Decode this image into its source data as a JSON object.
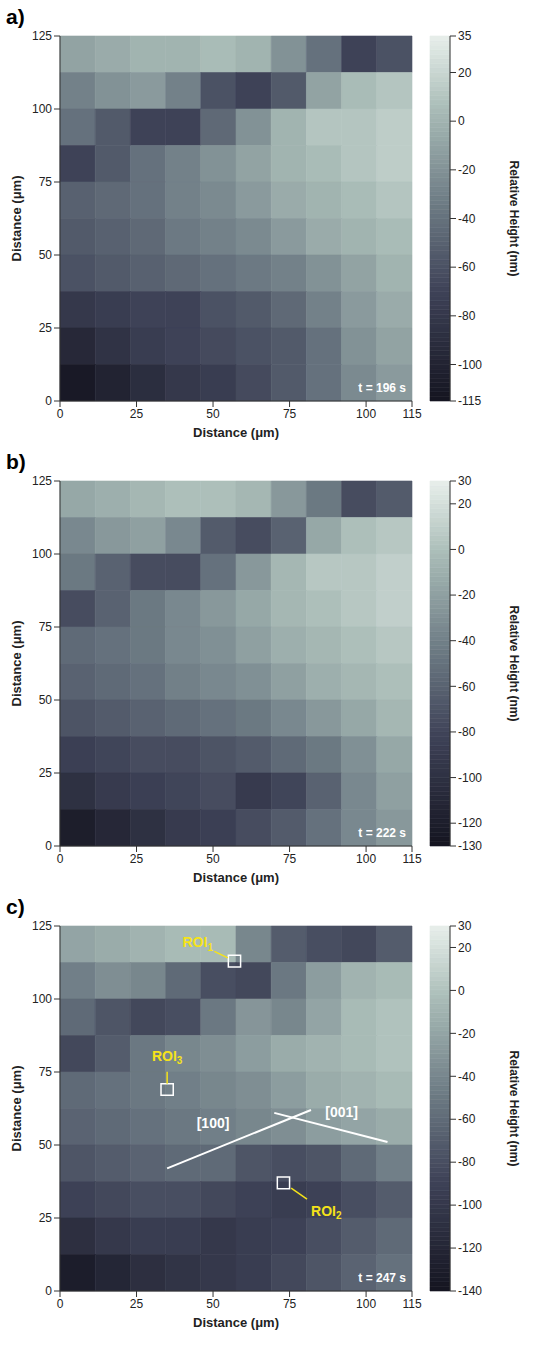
{
  "chart_data": [
    {
      "type": "heatmap",
      "panel": "a)",
      "xlabel": "Distance (μm)",
      "ylabel": "Distance (μm)",
      "xlim": [
        0,
        115
      ],
      "ylim": [
        0,
        125
      ],
      "xticks": [
        0,
        25,
        50,
        75,
        100,
        115
      ],
      "yticks": [
        0,
        25,
        50,
        75,
        100,
        125
      ],
      "time": "t = 196 s",
      "cells": [
        [
          -10,
          -5,
          0,
          0,
          5,
          0,
          -20,
          -40,
          -70,
          -60
        ],
        [
          -30,
          -20,
          -15,
          -30,
          -60,
          -70,
          -55,
          -10,
          5,
          10
        ],
        [
          -40,
          -55,
          -70,
          -70,
          -45,
          -20,
          0,
          10,
          10,
          15
        ],
        [
          -70,
          -55,
          -40,
          -30,
          -20,
          -10,
          0,
          5,
          10,
          15
        ],
        [
          -50,
          -45,
          -40,
          -30,
          -25,
          -15,
          -5,
          0,
          5,
          10
        ],
        [
          -55,
          -50,
          -45,
          -35,
          -30,
          -25,
          -15,
          -5,
          0,
          5
        ],
        [
          -60,
          -55,
          -50,
          -45,
          -40,
          -35,
          -30,
          -20,
          -10,
          0
        ],
        [
          -80,
          -75,
          -70,
          -70,
          -60,
          -55,
          -45,
          -30,
          -15,
          -5
        ],
        [
          -95,
          -85,
          -75,
          -70,
          -65,
          -60,
          -55,
          -40,
          -20,
          -10
        ],
        [
          -110,
          -100,
          -90,
          -80,
          -75,
          -65,
          -55,
          -40,
          -25,
          -15
        ]
      ],
      "colorbar": {
        "label": "Relative Height (nm)",
        "range": [
          -115,
          35
        ],
        "ticks": [
          35,
          20,
          0,
          -20,
          -40,
          -60,
          -80,
          -100,
          -115
        ]
      }
    },
    {
      "type": "heatmap",
      "panel": "b)",
      "xlabel": "Distance (μm)",
      "ylabel": "Distance (μm)",
      "xlim": [
        0,
        115
      ],
      "ylim": [
        0,
        125
      ],
      "xticks": [
        0,
        25,
        50,
        75,
        100,
        115
      ],
      "yticks": [
        0,
        25,
        50,
        75,
        100,
        125
      ],
      "time": "t = 222 s",
      "cells": [
        [
          -15,
          -10,
          -5,
          0,
          0,
          -5,
          -25,
          -45,
          -75,
          -65
        ],
        [
          -35,
          -25,
          -20,
          -35,
          -65,
          -75,
          -60,
          -15,
          0,
          5
        ],
        [
          -45,
          -60,
          -75,
          -75,
          -50,
          -25,
          -5,
          5,
          5,
          10
        ],
        [
          -75,
          -60,
          -45,
          -35,
          -25,
          -15,
          -5,
          0,
          5,
          10
        ],
        [
          -55,
          -50,
          -45,
          -35,
          -30,
          -20,
          -10,
          -5,
          0,
          5
        ],
        [
          -60,
          -55,
          -50,
          -40,
          -35,
          -30,
          -20,
          -10,
          -5,
          0
        ],
        [
          -70,
          -65,
          -60,
          -55,
          -50,
          -45,
          -35,
          -25,
          -15,
          -5
        ],
        [
          -85,
          -80,
          -75,
          -75,
          -70,
          -65,
          -55,
          -45,
          -30,
          -15
        ],
        [
          -100,
          -90,
          -85,
          -80,
          -75,
          -90,
          -80,
          -60,
          -35,
          -20
        ],
        [
          -120,
          -110,
          -100,
          -90,
          -85,
          -75,
          -65,
          -50,
          -35,
          -25
        ]
      ],
      "colorbar": {
        "label": "Relative Height (nm)",
        "range": [
          -130,
          30
        ],
        "ticks": [
          30,
          20,
          0,
          -20,
          -40,
          -60,
          -80,
          -100,
          -120,
          -130
        ]
      }
    },
    {
      "type": "heatmap",
      "panel": "c)",
      "xlabel": "Distance (μm)",
      "ylabel": "Distance (μm)",
      "xlim": [
        0,
        115
      ],
      "ylim": [
        0,
        125
      ],
      "xticks": [
        0,
        25,
        50,
        75,
        100,
        115
      ],
      "yticks": [
        0,
        25,
        50,
        75,
        100,
        125
      ],
      "time": "t = 247 s",
      "cells": [
        [
          -20,
          -15,
          -10,
          -5,
          -5,
          -40,
          -70,
          -80,
          -85,
          -70
        ],
        [
          -45,
          -35,
          -40,
          -60,
          -80,
          -85,
          -50,
          -25,
          -10,
          -5
        ],
        [
          -60,
          -75,
          -85,
          -80,
          -50,
          -30,
          -40,
          -20,
          -5,
          0
        ],
        [
          -85,
          -70,
          -50,
          -40,
          -35,
          -25,
          -15,
          -10,
          -5,
          0
        ],
        [
          -60,
          -55,
          -50,
          -45,
          -40,
          -35,
          -25,
          -15,
          -10,
          -5
        ],
        [
          -65,
          -60,
          -55,
          -50,
          -45,
          -40,
          -35,
          -25,
          -20,
          -15
        ],
        [
          -75,
          -70,
          -65,
          -60,
          -60,
          -75,
          -80,
          -75,
          -60,
          -45
        ],
        [
          -90,
          -85,
          -80,
          -80,
          -85,
          -90,
          -95,
          -90,
          -80,
          -70
        ],
        [
          -110,
          -100,
          -95,
          -95,
          -100,
          -95,
          -90,
          -80,
          -70,
          -60
        ],
        [
          -130,
          -120,
          -110,
          -105,
          -100,
          -95,
          -85,
          -75,
          -65,
          -55
        ]
      ],
      "colorbar": {
        "label": "Relative Height (nm)",
        "range": [
          -140,
          30
        ],
        "ticks": [
          30,
          20,
          0,
          -20,
          -40,
          -60,
          -80,
          -100,
          -120,
          -140
        ]
      },
      "rois": [
        {
          "label": "ROI1",
          "x": 57,
          "y": 113,
          "label_x": 45,
          "label_y": 119
        },
        {
          "label": "ROI3",
          "x": 35,
          "y": 69,
          "label_x": 35,
          "label_y": 80
        },
        {
          "label": "ROI2",
          "x": 73,
          "y": 37,
          "label_x": 87,
          "label_y": 27
        }
      ],
      "directions": [
        {
          "label": "[100]",
          "x": [
            35,
            82
          ],
          "y": [
            42,
            62
          ],
          "label_x": 50,
          "label_y": 57
        },
        {
          "label": "[001]",
          "x": [
            70,
            107
          ],
          "y": [
            61,
            51
          ],
          "label_x": 92,
          "label_y": 61
        }
      ]
    }
  ]
}
